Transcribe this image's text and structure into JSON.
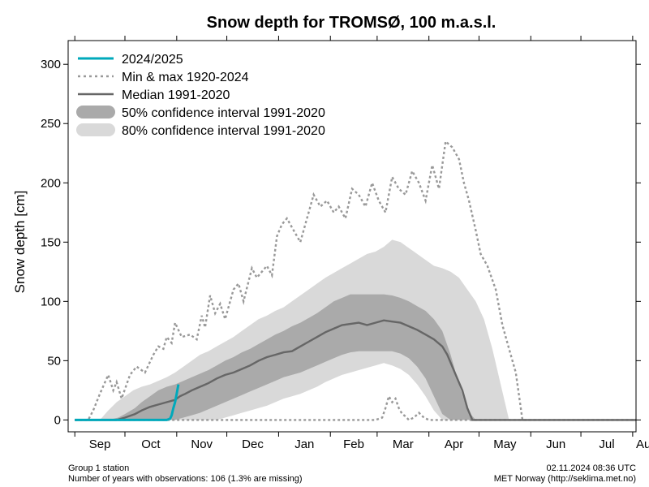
{
  "chart_data": {
    "type": "line",
    "title": "Snow depth for TROMSØ, 100 m.a.s.l.",
    "ylabel": "Snow depth [cm]",
    "xlabel": "",
    "ylim": [
      -10,
      320
    ],
    "yticks": [
      0,
      50,
      100,
      150,
      200,
      250,
      300
    ],
    "xlim": [
      -4,
      336
    ],
    "x_unit": "day of season from 1 Sep",
    "months": [
      {
        "label": "Sep",
        "start": 0,
        "end": 30
      },
      {
        "label": "Oct",
        "start": 30,
        "end": 61
      },
      {
        "label": "Nov",
        "start": 61,
        "end": 91
      },
      {
        "label": "Dec",
        "start": 91,
        "end": 122
      },
      {
        "label": "Jan",
        "start": 122,
        "end": 153
      },
      {
        "label": "Feb",
        "start": 153,
        "end": 181
      },
      {
        "label": "Mar",
        "start": 181,
        "end": 212
      },
      {
        "label": "Apr",
        "start": 212,
        "end": 242
      },
      {
        "label": "May",
        "start": 242,
        "end": 273
      },
      {
        "label": "Jun",
        "start": 273,
        "end": 303
      },
      {
        "label": "Jul",
        "start": 303,
        "end": 334
      },
      {
        "label": "Aug",
        "start": 334,
        "end": 365
      }
    ],
    "legend": {
      "placement": "top-left",
      "entries": [
        {
          "key": "current",
          "label": "2024/2025"
        },
        {
          "key": "minmax",
          "label": "Min & max 1920-2024"
        },
        {
          "key": "median",
          "label": "Median 1991-2020"
        },
        {
          "key": "ci50",
          "label": "50% confidence interval 1991-2020"
        },
        {
          "key": "ci80",
          "label": "80% confidence interval 1991-2020"
        }
      ]
    },
    "colors": {
      "current": "#00a9bb",
      "minmax": "#999999",
      "median": "#666666",
      "ci50": "#aaaaaa",
      "ci80": "#d9d9d9"
    },
    "series": [
      {
        "name": "2024/2025",
        "x": [
          0,
          10,
          20,
          30,
          40,
          50,
          55,
          57,
          58,
          59,
          60,
          61,
          62
        ],
        "y": [
          0,
          0,
          0,
          0,
          0,
          0,
          0,
          1,
          4,
          10,
          15,
          22,
          30
        ]
      },
      {
        "name": "Max 1920-2024",
        "x": [
          0,
          8,
          11,
          15,
          20,
          23,
          25,
          28,
          33,
          37,
          42,
          47,
          50,
          53,
          55,
          58,
          60,
          64,
          69,
          73,
          76,
          78,
          81,
          84,
          87,
          90,
          95,
          98,
          101,
          106,
          109,
          112,
          115,
          118,
          121,
          124,
          127,
          131,
          135,
          139,
          143,
          147,
          151,
          155,
          158,
          162,
          166,
          170,
          174,
          178,
          182,
          186,
          190,
          194,
          198,
          202,
          206,
          210,
          214,
          218,
          222,
          226,
          230,
          233,
          236,
          240,
          243,
          247,
          252,
          256,
          260,
          264,
          268,
          272,
          277,
          283,
          288,
          293,
          298,
          305,
          315,
          325,
          336
        ],
        "y": [
          0,
          0,
          8,
          22,
          38,
          25,
          32,
          18,
          38,
          45,
          40,
          55,
          62,
          60,
          70,
          65,
          82,
          70,
          72,
          68,
          88,
          78,
          105,
          90,
          98,
          85,
          110,
          115,
          100,
          128,
          120,
          125,
          130,
          122,
          155,
          165,
          170,
          160,
          150,
          170,
          190,
          180,
          185,
          175,
          180,
          170,
          195,
          190,
          180,
          200,
          185,
          175,
          205,
          195,
          190,
          210,
          200,
          185,
          215,
          195,
          235,
          230,
          220,
          200,
          185,
          160,
          140,
          130,
          110,
          80,
          60,
          40,
          0,
          0,
          0,
          0,
          0,
          0,
          0,
          0,
          0,
          0,
          0
        ]
      },
      {
        "name": "Min 1920-2024",
        "x": [
          0,
          100,
          180,
          184,
          186,
          188,
          190,
          192,
          194,
          196,
          198,
          200,
          203,
          206,
          209,
          212,
          220,
          336
        ],
        "y": [
          0,
          0,
          0,
          2,
          10,
          20,
          15,
          18,
          10,
          5,
          3,
          0,
          2,
          6,
          2,
          0,
          0,
          0
        ]
      },
      {
        "name": "Median 1991-2020",
        "x": [
          0,
          25,
          30,
          36,
          40,
          45,
          50,
          55,
          60,
          63,
          66,
          70,
          75,
          80,
          85,
          90,
          95,
          100,
          105,
          110,
          115,
          120,
          125,
          130,
          135,
          140,
          145,
          150,
          155,
          160,
          165,
          170,
          175,
          180,
          185,
          190,
          195,
          200,
          205,
          210,
          215,
          220,
          223,
          226,
          229,
          232,
          235,
          238,
          241,
          244,
          250,
          260,
          336
        ],
        "y": [
          0,
          0,
          2,
          5,
          8,
          11,
          13,
          15,
          17,
          20,
          22,
          25,
          28,
          31,
          35,
          38,
          40,
          43,
          46,
          50,
          53,
          55,
          57,
          58,
          62,
          66,
          70,
          74,
          77,
          80,
          81,
          82,
          80,
          82,
          84,
          83,
          82,
          79,
          76,
          72,
          68,
          62,
          55,
          45,
          35,
          25,
          10,
          0,
          0,
          0,
          0,
          0,
          0
        ]
      }
    ],
    "bands": [
      {
        "name": "50% confidence interval 1991-2020",
        "x": [
          20,
          26,
          30,
          36,
          40,
          45,
          50,
          55,
          60,
          65,
          70,
          75,
          80,
          85,
          90,
          95,
          100,
          105,
          110,
          115,
          120,
          125,
          130,
          135,
          140,
          145,
          150,
          155,
          160,
          165,
          170,
          175,
          180,
          185,
          190,
          195,
          200,
          205,
          210,
          215,
          220,
          225,
          230,
          235,
          240
        ],
        "lower": [
          0,
          0,
          0,
          0,
          0,
          0,
          0,
          0,
          0,
          2,
          4,
          6,
          9,
          12,
          15,
          18,
          21,
          24,
          27,
          30,
          33,
          36,
          38,
          40,
          43,
          46,
          49,
          52,
          55,
          57,
          58,
          58,
          58,
          58,
          58,
          56,
          52,
          45,
          35,
          20,
          5,
          0,
          0,
          0,
          0
        ],
        "upper": [
          0,
          2,
          5,
          10,
          15,
          20,
          25,
          28,
          30,
          33,
          36,
          39,
          42,
          46,
          50,
          53,
          57,
          60,
          64,
          68,
          72,
          75,
          79,
          82,
          86,
          90,
          95,
          100,
          103,
          106,
          106,
          106,
          106,
          106,
          105,
          103,
          100,
          96,
          92,
          85,
          75,
          55,
          30,
          8,
          0
        ]
      },
      {
        "name": "80% confidence interval 1991-2020",
        "x": [
          15,
          20,
          25,
          30,
          35,
          40,
          45,
          50,
          55,
          60,
          65,
          70,
          75,
          80,
          85,
          90,
          95,
          100,
          105,
          110,
          115,
          120,
          125,
          130,
          135,
          140,
          145,
          150,
          155,
          160,
          165,
          170,
          175,
          180,
          185,
          190,
          195,
          200,
          205,
          210,
          215,
          220,
          225,
          230,
          235,
          240,
          245,
          250,
          255,
          260
        ],
        "lower": [
          0,
          0,
          0,
          0,
          0,
          0,
          0,
          0,
          0,
          0,
          0,
          0,
          0,
          0,
          0,
          2,
          4,
          6,
          8,
          10,
          12,
          15,
          18,
          20,
          22,
          25,
          28,
          32,
          35,
          38,
          40,
          42,
          44,
          46,
          48,
          46,
          43,
          38,
          30,
          20,
          8,
          0,
          0,
          0,
          0,
          0,
          0,
          0,
          0,
          0
        ],
        "upper": [
          0,
          8,
          15,
          20,
          25,
          28,
          30,
          33,
          36,
          40,
          45,
          50,
          55,
          58,
          62,
          66,
          70,
          75,
          80,
          85,
          88,
          92,
          95,
          100,
          105,
          110,
          115,
          120,
          124,
          128,
          132,
          136,
          140,
          142,
          146,
          152,
          150,
          145,
          140,
          135,
          130,
          128,
          125,
          120,
          110,
          100,
          85,
          60,
          30,
          0
        ]
      }
    ]
  },
  "footer": {
    "left_line1": "Group 1 station",
    "left_line2": "Number of years with observations: 106 (1.3% are missing)",
    "right_line1": "02.11.2024 08:36 UTC",
    "right_line2": "MET Norway (http://seklima.met.no)"
  }
}
